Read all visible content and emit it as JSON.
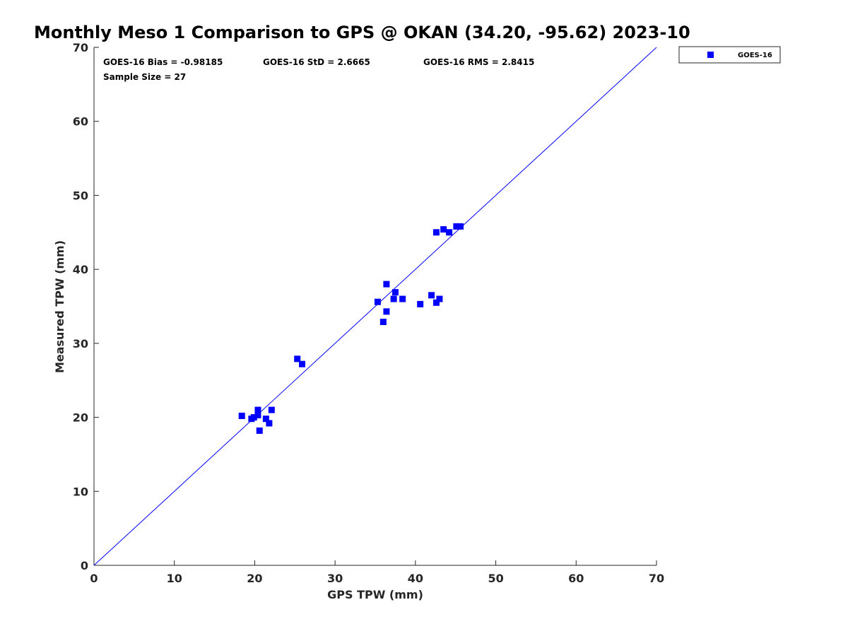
{
  "chart_data": {
    "type": "scatter",
    "title": "Monthly Meso 1 Comparison to GPS @ OKAN (34.20, -95.62) 2023-10",
    "xlabel": "GPS TPW (mm)",
    "ylabel": "Measured TPW (mm)",
    "xlim": [
      0,
      70
    ],
    "ylim": [
      0,
      70
    ],
    "xticks": [
      "0",
      "10",
      "20",
      "30",
      "40",
      "50",
      "60",
      "70"
    ],
    "yticks": [
      "0",
      "10",
      "20",
      "30",
      "40",
      "50",
      "60",
      "70"
    ],
    "grid": false,
    "legend_position": "outside-top-right",
    "reference_line": {
      "from": [
        0,
        0
      ],
      "to": [
        70,
        70
      ],
      "color": "#0000ff"
    },
    "stats": {
      "bias": "GOES-16 Bias = -0.98185",
      "std": "GOES-16 StD = 2.6665",
      "rms": "GOES-16 RMS = 2.8415",
      "sample": "Sample Size = 27"
    },
    "series": [
      {
        "name": "GOES-16",
        "color": "#0000ff",
        "marker": "square",
        "points": [
          [
            18.4,
            20.2
          ],
          [
            19.6,
            19.8
          ],
          [
            19.9,
            20.0
          ],
          [
            20.4,
            20.3
          ],
          [
            20.4,
            21.0
          ],
          [
            20.6,
            18.2
          ],
          [
            21.4,
            19.8
          ],
          [
            21.8,
            19.2
          ],
          [
            22.1,
            21.0
          ],
          [
            25.3,
            27.9
          ],
          [
            25.9,
            27.2
          ],
          [
            35.3,
            35.6
          ],
          [
            36.0,
            32.9
          ],
          [
            36.4,
            38.0
          ],
          [
            36.4,
            34.3
          ],
          [
            37.3,
            36.0
          ],
          [
            37.5,
            36.9
          ],
          [
            38.4,
            36.0
          ],
          [
            40.6,
            35.3
          ],
          [
            42.0,
            36.5
          ],
          [
            42.6,
            35.5
          ],
          [
            43.0,
            36.0
          ],
          [
            42.6,
            45.0
          ],
          [
            43.5,
            45.4
          ],
          [
            44.2,
            45.0
          ],
          [
            45.1,
            45.8
          ],
          [
            45.6,
            45.8
          ]
        ]
      }
    ]
  }
}
